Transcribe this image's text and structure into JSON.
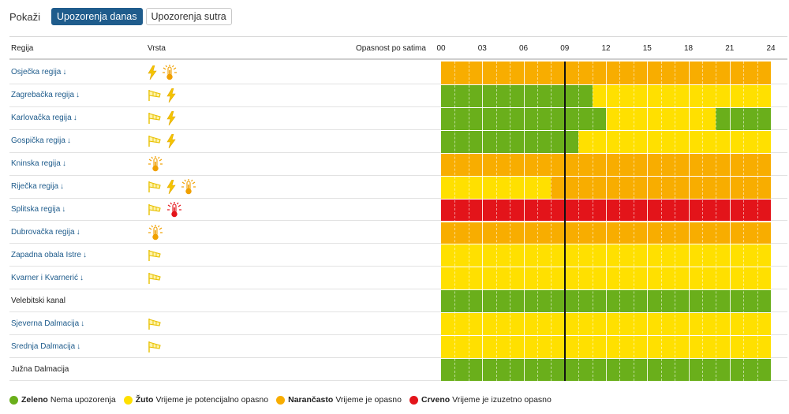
{
  "toolbar": {
    "show_label": "Pokaži",
    "tabs": [
      {
        "label": "Upozorenja danas",
        "active": true
      },
      {
        "label": "Upozorenja sutra",
        "active": false
      }
    ]
  },
  "table": {
    "col_region": "Regija",
    "col_type": "Vrsta",
    "col_danger": "Opasnost po satima",
    "hours": [
      "00",
      "03",
      "06",
      "09",
      "12",
      "15",
      "18",
      "21",
      "24"
    ],
    "current_hour": 9
  },
  "colors": {
    "green": "#6aaf1b",
    "yellow": "#ffe000",
    "orange": "#f8ad00",
    "red": "#e3141a",
    "link": "#1f5c8c"
  },
  "regions": [
    {
      "name": "Osječka regija",
      "link": true,
      "icons": [
        "thunderstorm-icon",
        "heat-icon"
      ],
      "levels": [
        [
          "orange",
          0,
          24
        ]
      ]
    },
    {
      "name": "Zagrebačka regija",
      "link": true,
      "icons": [
        "wind-icon",
        "thunderstorm-icon"
      ],
      "levels": [
        [
          "green",
          0,
          11
        ],
        [
          "yellow",
          11,
          24
        ]
      ]
    },
    {
      "name": "Karlovačka regija",
      "link": true,
      "icons": [
        "wind-icon",
        "thunderstorm-icon"
      ],
      "levels": [
        [
          "green",
          0,
          12
        ],
        [
          "yellow",
          12,
          20
        ],
        [
          "green",
          20,
          24
        ]
      ]
    },
    {
      "name": "Gospička regija",
      "link": true,
      "icons": [
        "wind-icon",
        "thunderstorm-icon"
      ],
      "levels": [
        [
          "green",
          0,
          10
        ],
        [
          "yellow",
          10,
          24
        ]
      ]
    },
    {
      "name": "Kninska regija",
      "link": true,
      "icons": [
        "heat-icon"
      ],
      "levels": [
        [
          "orange",
          0,
          24
        ]
      ]
    },
    {
      "name": "Riječka regija",
      "link": true,
      "icons": [
        "wind-icon",
        "thunderstorm-icon",
        "heat-icon"
      ],
      "levels": [
        [
          "yellow",
          0,
          8
        ],
        [
          "orange",
          8,
          24
        ]
      ]
    },
    {
      "name": "Splitska regija",
      "link": true,
      "icons": [
        "wind-icon",
        "heat-red-icon"
      ],
      "levels": [
        [
          "red",
          0,
          24
        ]
      ]
    },
    {
      "name": "Dubrovačka regija",
      "link": true,
      "icons": [
        "heat-icon"
      ],
      "levels": [
        [
          "orange",
          0,
          24
        ]
      ]
    },
    {
      "name": "Zapadna obala Istre",
      "link": true,
      "icons": [
        "wind-icon"
      ],
      "levels": [
        [
          "yellow",
          0,
          24
        ]
      ]
    },
    {
      "name": "Kvarner i Kvarnerić",
      "link": true,
      "icons": [
        "wind-icon"
      ],
      "levels": [
        [
          "yellow",
          0,
          24
        ]
      ]
    },
    {
      "name": "Velebitski kanal",
      "link": false,
      "icons": [],
      "levels": [
        [
          "green",
          0,
          24
        ]
      ]
    },
    {
      "name": "Sjeverna Dalmacija",
      "link": true,
      "icons": [
        "wind-icon"
      ],
      "levels": [
        [
          "yellow",
          0,
          24
        ]
      ]
    },
    {
      "name": "Srednja Dalmacija",
      "link": true,
      "icons": [
        "wind-icon"
      ],
      "levels": [
        [
          "yellow",
          0,
          24
        ]
      ]
    },
    {
      "name": "Južna Dalmacija",
      "link": false,
      "icons": [],
      "levels": [
        [
          "green",
          0,
          24
        ]
      ]
    }
  ],
  "legend": [
    {
      "color": "green",
      "name": "Zeleno",
      "desc": "Nema upozorenja"
    },
    {
      "color": "yellow",
      "name": "Žuto",
      "desc": "Vrijeme je potencijalno opasno"
    },
    {
      "color": "orange",
      "name": "Narančasto",
      "desc": "Vrijeme je opasno"
    },
    {
      "color": "red",
      "name": "Crveno",
      "desc": "Vrijeme je izuzetno opasno"
    }
  ]
}
